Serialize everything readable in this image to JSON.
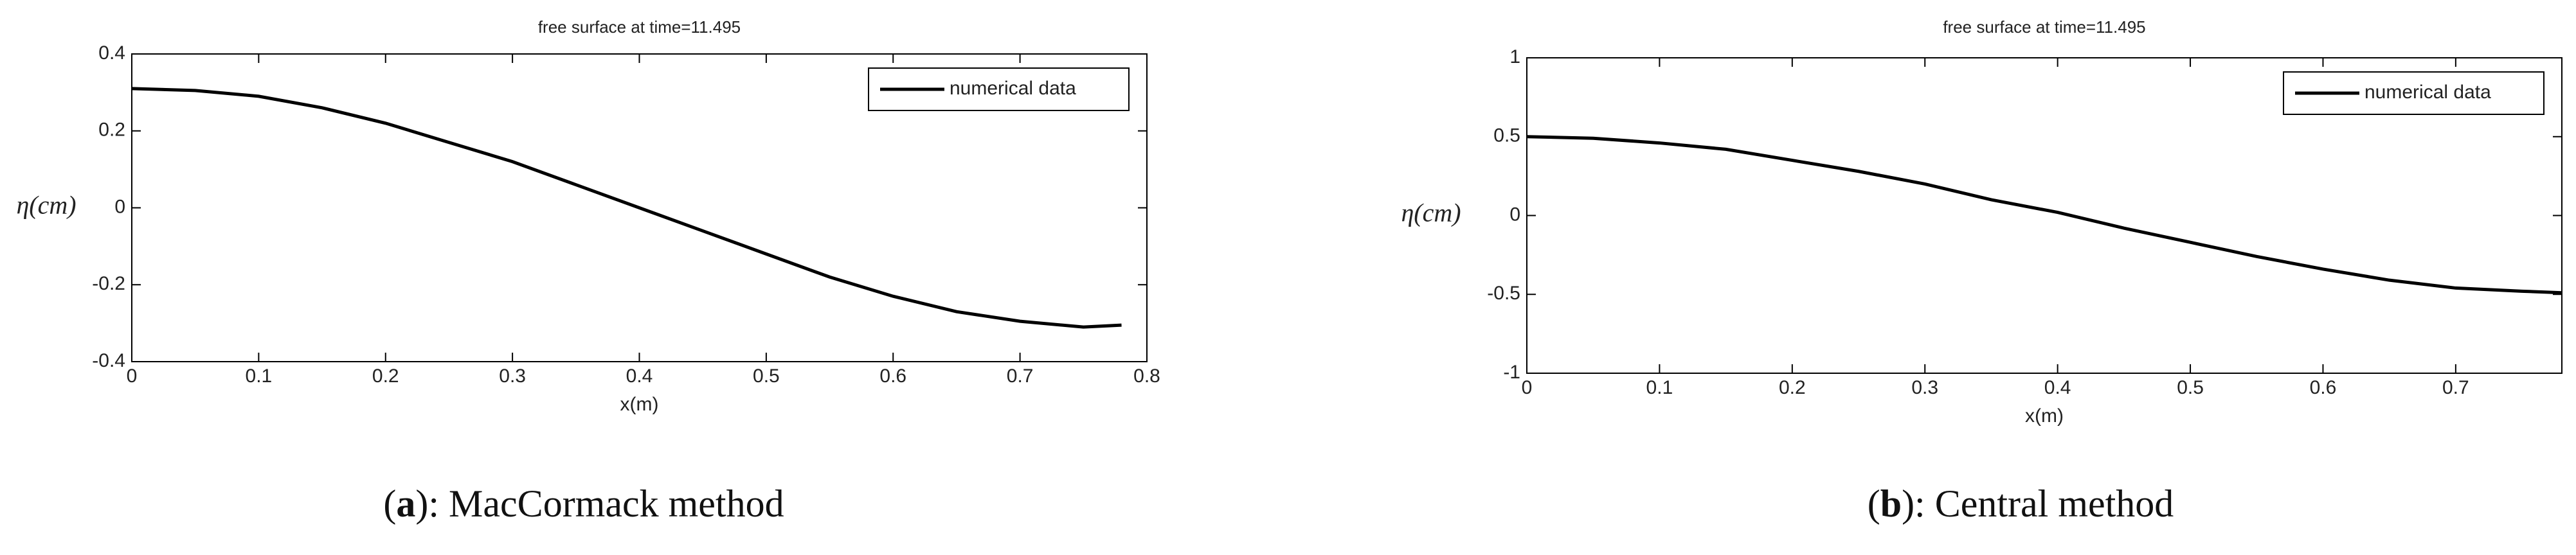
{
  "chart_data": [
    {
      "type": "line",
      "title": "free surface at time=11.495",
      "xlabel": "x(m)",
      "ylabel": "η(cm)",
      "x": [
        0,
        0.05,
        0.1,
        0.15,
        0.2,
        0.25,
        0.3,
        0.35,
        0.4,
        0.45,
        0.5,
        0.55,
        0.6,
        0.65,
        0.7,
        0.75,
        0.78
      ],
      "series": [
        {
          "name": "numerical data",
          "color": "#000000",
          "values": [
            0.31,
            0.305,
            0.29,
            0.26,
            0.22,
            0.17,
            0.12,
            0.06,
            0.0,
            -0.06,
            -0.12,
            -0.18,
            -0.23,
            -0.27,
            -0.295,
            -0.31,
            -0.305
          ]
        }
      ],
      "xlim": [
        0,
        0.8
      ],
      "xticks": [
        0,
        0.1,
        0.2,
        0.3,
        0.4,
        0.5,
        0.6,
        0.7,
        0.8
      ],
      "ylim": [
        -0.4,
        0.4
      ],
      "yticks": [
        -0.4,
        -0.2,
        0,
        0.2,
        0.4
      ],
      "legend": "upper right",
      "grid": false,
      "caption_open": "(",
      "caption_label": "a",
      "caption_text": "): MacCormack method"
    },
    {
      "type": "line",
      "title": "free surface at time=11.495",
      "xlabel": "x(m)",
      "ylabel": "η(cm)",
      "x": [
        0,
        0.05,
        0.1,
        0.15,
        0.2,
        0.25,
        0.3,
        0.35,
        0.4,
        0.45,
        0.5,
        0.55,
        0.6,
        0.65,
        0.7,
        0.75,
        0.78
      ],
      "series": [
        {
          "name": "numerical data",
          "color": "#000000",
          "values": [
            0.5,
            0.49,
            0.46,
            0.42,
            0.35,
            0.28,
            0.2,
            0.1,
            0.02,
            -0.08,
            -0.17,
            -0.26,
            -0.34,
            -0.41,
            -0.46,
            -0.48,
            -0.49
          ]
        }
      ],
      "xlim": [
        0,
        0.78
      ],
      "xticks": [
        0,
        0.1,
        0.2,
        0.3,
        0.4,
        0.5,
        0.6,
        0.7
      ],
      "ylim": [
        -1,
        1
      ],
      "yticks": [
        -1,
        -0.5,
        0,
        0.5,
        1
      ],
      "legend": "upper right",
      "grid": false,
      "caption_open": "(",
      "caption_label": "b",
      "caption_text": "): Central method"
    }
  ]
}
